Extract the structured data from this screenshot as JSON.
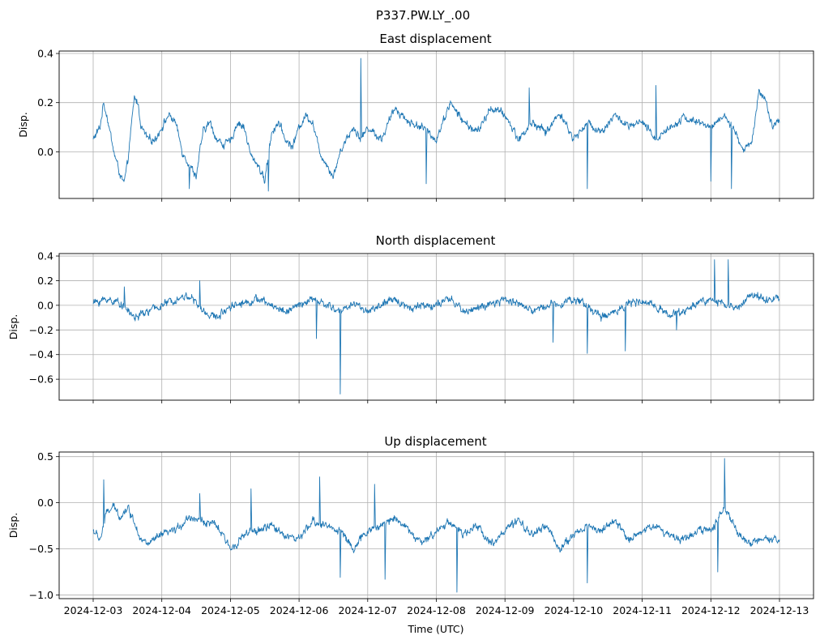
{
  "figure_title": "P337.PW.LY_.00",
  "chart_data": [
    {
      "type": "line",
      "title": "East displacement",
      "ylabel": "Disp.",
      "xlabel": "",
      "ylim": [
        -0.19,
        0.41
      ],
      "yticks": [
        0.4,
        0.2,
        0.0,
        -0.2
      ],
      "ytick_labels": [
        "0.4",
        "0.2",
        "0.0",
        ""
      ],
      "grid": true,
      "line_color": "#1f77b4",
      "x_day_start": 0,
      "x_day_end": 10,
      "profile_days": [
        0,
        0.1,
        0.15,
        0.2,
        0.3,
        0.4,
        0.45,
        0.5,
        0.6,
        0.65,
        0.7,
        0.8,
        0.9,
        1.0,
        1.1,
        1.2,
        1.3,
        1.4,
        1.5,
        1.6,
        1.7,
        1.8,
        1.9,
        2.0,
        2.1,
        2.2,
        2.3,
        2.4,
        2.5,
        2.6,
        2.7,
        2.8,
        2.9,
        3.0,
        3.1,
        3.2,
        3.3,
        3.4,
        3.5,
        3.6,
        3.7,
        3.8,
        3.9,
        4.0,
        4.2,
        4.4,
        4.6,
        4.8,
        5.0,
        5.2,
        5.4,
        5.6,
        5.8,
        6.0,
        6.2,
        6.4,
        6.6,
        6.8,
        7.0,
        7.2,
        7.4,
        7.6,
        7.8,
        8.0,
        8.2,
        8.4,
        8.6,
        8.8,
        9.0,
        9.2,
        9.4,
        9.5,
        9.6,
        9.7,
        9.8,
        9.9,
        10.0
      ],
      "profile_values": [
        0.05,
        0.1,
        0.2,
        0.15,
        0.0,
        -0.1,
        -0.13,
        -0.05,
        0.22,
        0.2,
        0.1,
        0.05,
        0.05,
        0.1,
        0.15,
        0.12,
        0.0,
        -0.05,
        -0.1,
        0.08,
        0.12,
        0.05,
        0.03,
        0.04,
        0.12,
        0.1,
        -0.02,
        -0.05,
        -0.12,
        0.08,
        0.12,
        0.05,
        0.02,
        0.1,
        0.15,
        0.12,
        0.0,
        -0.05,
        -0.1,
        0.0,
        0.06,
        0.1,
        0.05,
        0.1,
        0.05,
        0.18,
        0.12,
        0.1,
        0.05,
        0.2,
        0.12,
        0.08,
        0.18,
        0.15,
        0.05,
        0.12,
        0.08,
        0.16,
        0.05,
        0.12,
        0.08,
        0.15,
        0.1,
        0.12,
        0.05,
        0.1,
        0.14,
        0.12,
        0.1,
        0.15,
        0.05,
        0.0,
        0.05,
        0.25,
        0.2,
        0.1,
        0.12
      ],
      "spikes": [
        [
          3.9,
          0.38
        ],
        [
          6.35,
          0.26
        ],
        [
          7.2,
          -0.15
        ],
        [
          8.2,
          0.27
        ],
        [
          9.0,
          -0.12
        ],
        [
          9.3,
          -0.15
        ],
        [
          4.85,
          -0.13
        ],
        [
          1.4,
          -0.15
        ],
        [
          2.55,
          -0.16
        ]
      ]
    },
    {
      "type": "line",
      "title": "North displacement",
      "ylabel": "Disp.",
      "xlabel": "",
      "ylim": [
        -0.77,
        0.42
      ],
      "yticks": [
        0.4,
        0.2,
        0.0,
        -0.2,
        -0.4,
        -0.6
      ],
      "ytick_labels": [
        "0.4",
        "0.2",
        "0.0",
        "−0.2",
        "−0.4",
        "−0.6"
      ],
      "grid": true,
      "line_color": "#1f77b4",
      "x_day_start": 0,
      "x_day_end": 10,
      "profile_days": [
        0,
        0.2,
        0.4,
        0.6,
        0.8,
        1.0,
        1.2,
        1.4,
        1.6,
        1.8,
        2.0,
        2.2,
        2.4,
        2.6,
        2.8,
        3.0,
        3.2,
        3.4,
        3.6,
        3.8,
        4.0,
        4.2,
        4.4,
        4.6,
        4.8,
        5.0,
        5.2,
        5.4,
        5.6,
        5.8,
        6.0,
        6.2,
        6.4,
        6.6,
        6.8,
        7.0,
        7.2,
        7.4,
        7.6,
        7.8,
        8.0,
        8.2,
        8.4,
        8.6,
        8.8,
        9.0,
        9.2,
        9.4,
        9.6,
        9.8,
        10.0
      ],
      "profile_values": [
        0.02,
        0.05,
        0.02,
        -0.1,
        -0.05,
        0.0,
        0.05,
        0.08,
        -0.05,
        -0.1,
        0.0,
        0.02,
        0.05,
        0.0,
        -0.05,
        0.0,
        0.05,
        0.0,
        -0.05,
        0.02,
        -0.05,
        0.0,
        0.05,
        -0.02,
        0.0,
        0.0,
        0.05,
        -0.05,
        -0.02,
        0.0,
        0.05,
        0.02,
        -0.05,
        0.0,
        0.02,
        0.05,
        0.0,
        -0.1,
        -0.05,
        0.02,
        0.02,
        0.0,
        -0.08,
        -0.05,
        0.02,
        0.05,
        0.0,
        -0.02,
        0.1,
        0.05,
        0.05
      ],
      "spikes": [
        [
          3.6,
          -0.72
        ],
        [
          3.25,
          -0.27
        ],
        [
          7.2,
          -0.39
        ],
        [
          6.7,
          -0.3
        ],
        [
          7.75,
          -0.37
        ],
        [
          9.05,
          0.37
        ],
        [
          9.25,
          0.37
        ],
        [
          8.5,
          -0.2
        ],
        [
          1.55,
          0.2
        ],
        [
          0.45,
          0.15
        ]
      ]
    },
    {
      "type": "line",
      "title": "Up displacement",
      "ylabel": "Disp.",
      "xlabel": "Time (UTC)",
      "ylim": [
        -1.04,
        0.55
      ],
      "yticks": [
        0.5,
        0.0,
        -0.5,
        -1.0
      ],
      "ytick_labels": [
        "0.5",
        "0.0",
        "−0.5",
        "−1.0"
      ],
      "grid": true,
      "line_color": "#1f77b4",
      "x_day_start": 0,
      "x_day_end": 10,
      "x_tick_labels": [
        "2024-12-03",
        "2024-12-04",
        "2024-12-05",
        "2024-12-06",
        "2024-12-07",
        "2024-12-08",
        "2024-12-09",
        "2024-12-10",
        "2024-12-11",
        "2024-12-12",
        "2024-12-13"
      ],
      "profile_days": [
        0,
        0.1,
        0.2,
        0.3,
        0.4,
        0.5,
        0.6,
        0.7,
        0.8,
        1.0,
        1.2,
        1.4,
        1.6,
        1.8,
        2.0,
        2.2,
        2.4,
        2.6,
        2.8,
        3.0,
        3.2,
        3.4,
        3.6,
        3.8,
        4.0,
        4.2,
        4.4,
        4.6,
        4.8,
        5.0,
        5.2,
        5.4,
        5.6,
        5.8,
        6.0,
        6.2,
        6.4,
        6.6,
        6.8,
        7.0,
        7.2,
        7.4,
        7.6,
        7.8,
        8.0,
        8.2,
        8.4,
        8.6,
        8.8,
        9.0,
        9.2,
        9.4,
        9.6,
        9.8,
        10.0
      ],
      "profile_values": [
        -0.3,
        -0.4,
        -0.1,
        -0.05,
        -0.15,
        -0.05,
        -0.2,
        -0.4,
        -0.45,
        -0.35,
        -0.3,
        -0.15,
        -0.2,
        -0.25,
        -0.5,
        -0.35,
        -0.3,
        -0.25,
        -0.35,
        -0.4,
        -0.2,
        -0.25,
        -0.3,
        -0.5,
        -0.3,
        -0.25,
        -0.15,
        -0.3,
        -0.45,
        -0.3,
        -0.2,
        -0.35,
        -0.25,
        -0.45,
        -0.3,
        -0.2,
        -0.35,
        -0.25,
        -0.5,
        -0.35,
        -0.25,
        -0.3,
        -0.2,
        -0.4,
        -0.3,
        -0.25,
        -0.35,
        -0.4,
        -0.3,
        -0.3,
        -0.05,
        -0.35,
        -0.45,
        -0.4,
        -0.42
      ],
      "spikes": [
        [
          9.2,
          0.48
        ],
        [
          3.3,
          0.28
        ],
        [
          0.15,
          0.25
        ],
        [
          9.1,
          -0.75
        ],
        [
          5.3,
          -0.97
        ],
        [
          7.2,
          -0.87
        ],
        [
          3.6,
          -0.81
        ],
        [
          4.25,
          -0.83
        ],
        [
          1.55,
          0.1
        ],
        [
          2.3,
          0.15
        ],
        [
          4.1,
          0.2
        ]
      ]
    }
  ]
}
